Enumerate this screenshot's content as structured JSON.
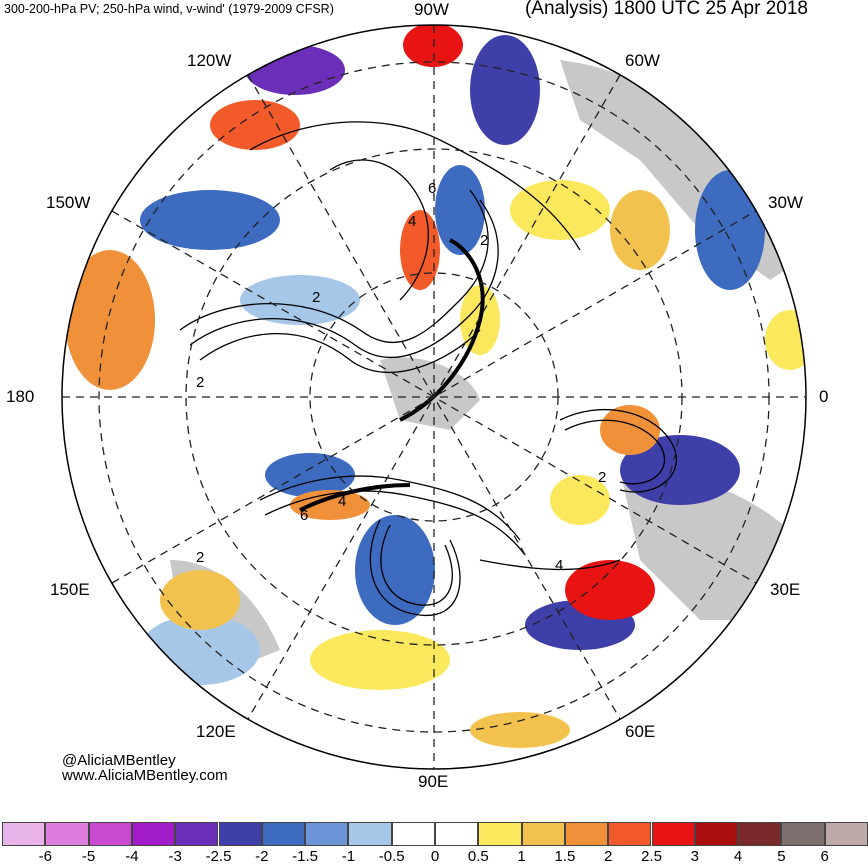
{
  "header": {
    "left_title": "300-200-hPa PV; 250-hPa wind, v-wind' (1979-2009 CFSR)",
    "right_title": "(Analysis) 1800 UTC 25 Apr 2018"
  },
  "longitude_labels": {
    "top": "90W",
    "upper_left": "120W",
    "upper_right": "60W",
    "left_upper": "150W",
    "right_upper": "30W",
    "left": "180",
    "right": "0",
    "left_lower": "150E",
    "right_lower": "30E",
    "lower_left": "120E",
    "lower_right": "60E",
    "bottom": "90E"
  },
  "contour_labels": [
    "6",
    "4",
    "2",
    "2",
    "2",
    "2",
    "6",
    "4",
    "2",
    "4"
  ],
  "credit": {
    "handle": "@AliciaMBentley",
    "website": "www.AliciaMBentley.com"
  },
  "colorbar": {
    "labels": [
      "-6",
      "-5",
      "-4",
      "-3",
      "-2.5",
      "-2",
      "-1.5",
      "-1",
      "-0.5",
      "0",
      "0.5",
      "1",
      "1.5",
      "2",
      "2.5",
      "3",
      "4",
      "5",
      "6"
    ],
    "colors": [
      "#e8b4e8",
      "#dd7ddd",
      "#c84bd1",
      "#a11bc9",
      "#6a2eb8",
      "#3f3fa9",
      "#3c6bbf",
      "#6b95d6",
      "#a7c7e8",
      "#ffffff",
      "#ffffff",
      "#fbe85d",
      "#f3c24e",
      "#f0913a",
      "#f25a2a",
      "#e81313",
      "#a90d0d",
      "#7a2a2a",
      "#7e6e6e",
      "#bfaaaa"
    ]
  }
}
